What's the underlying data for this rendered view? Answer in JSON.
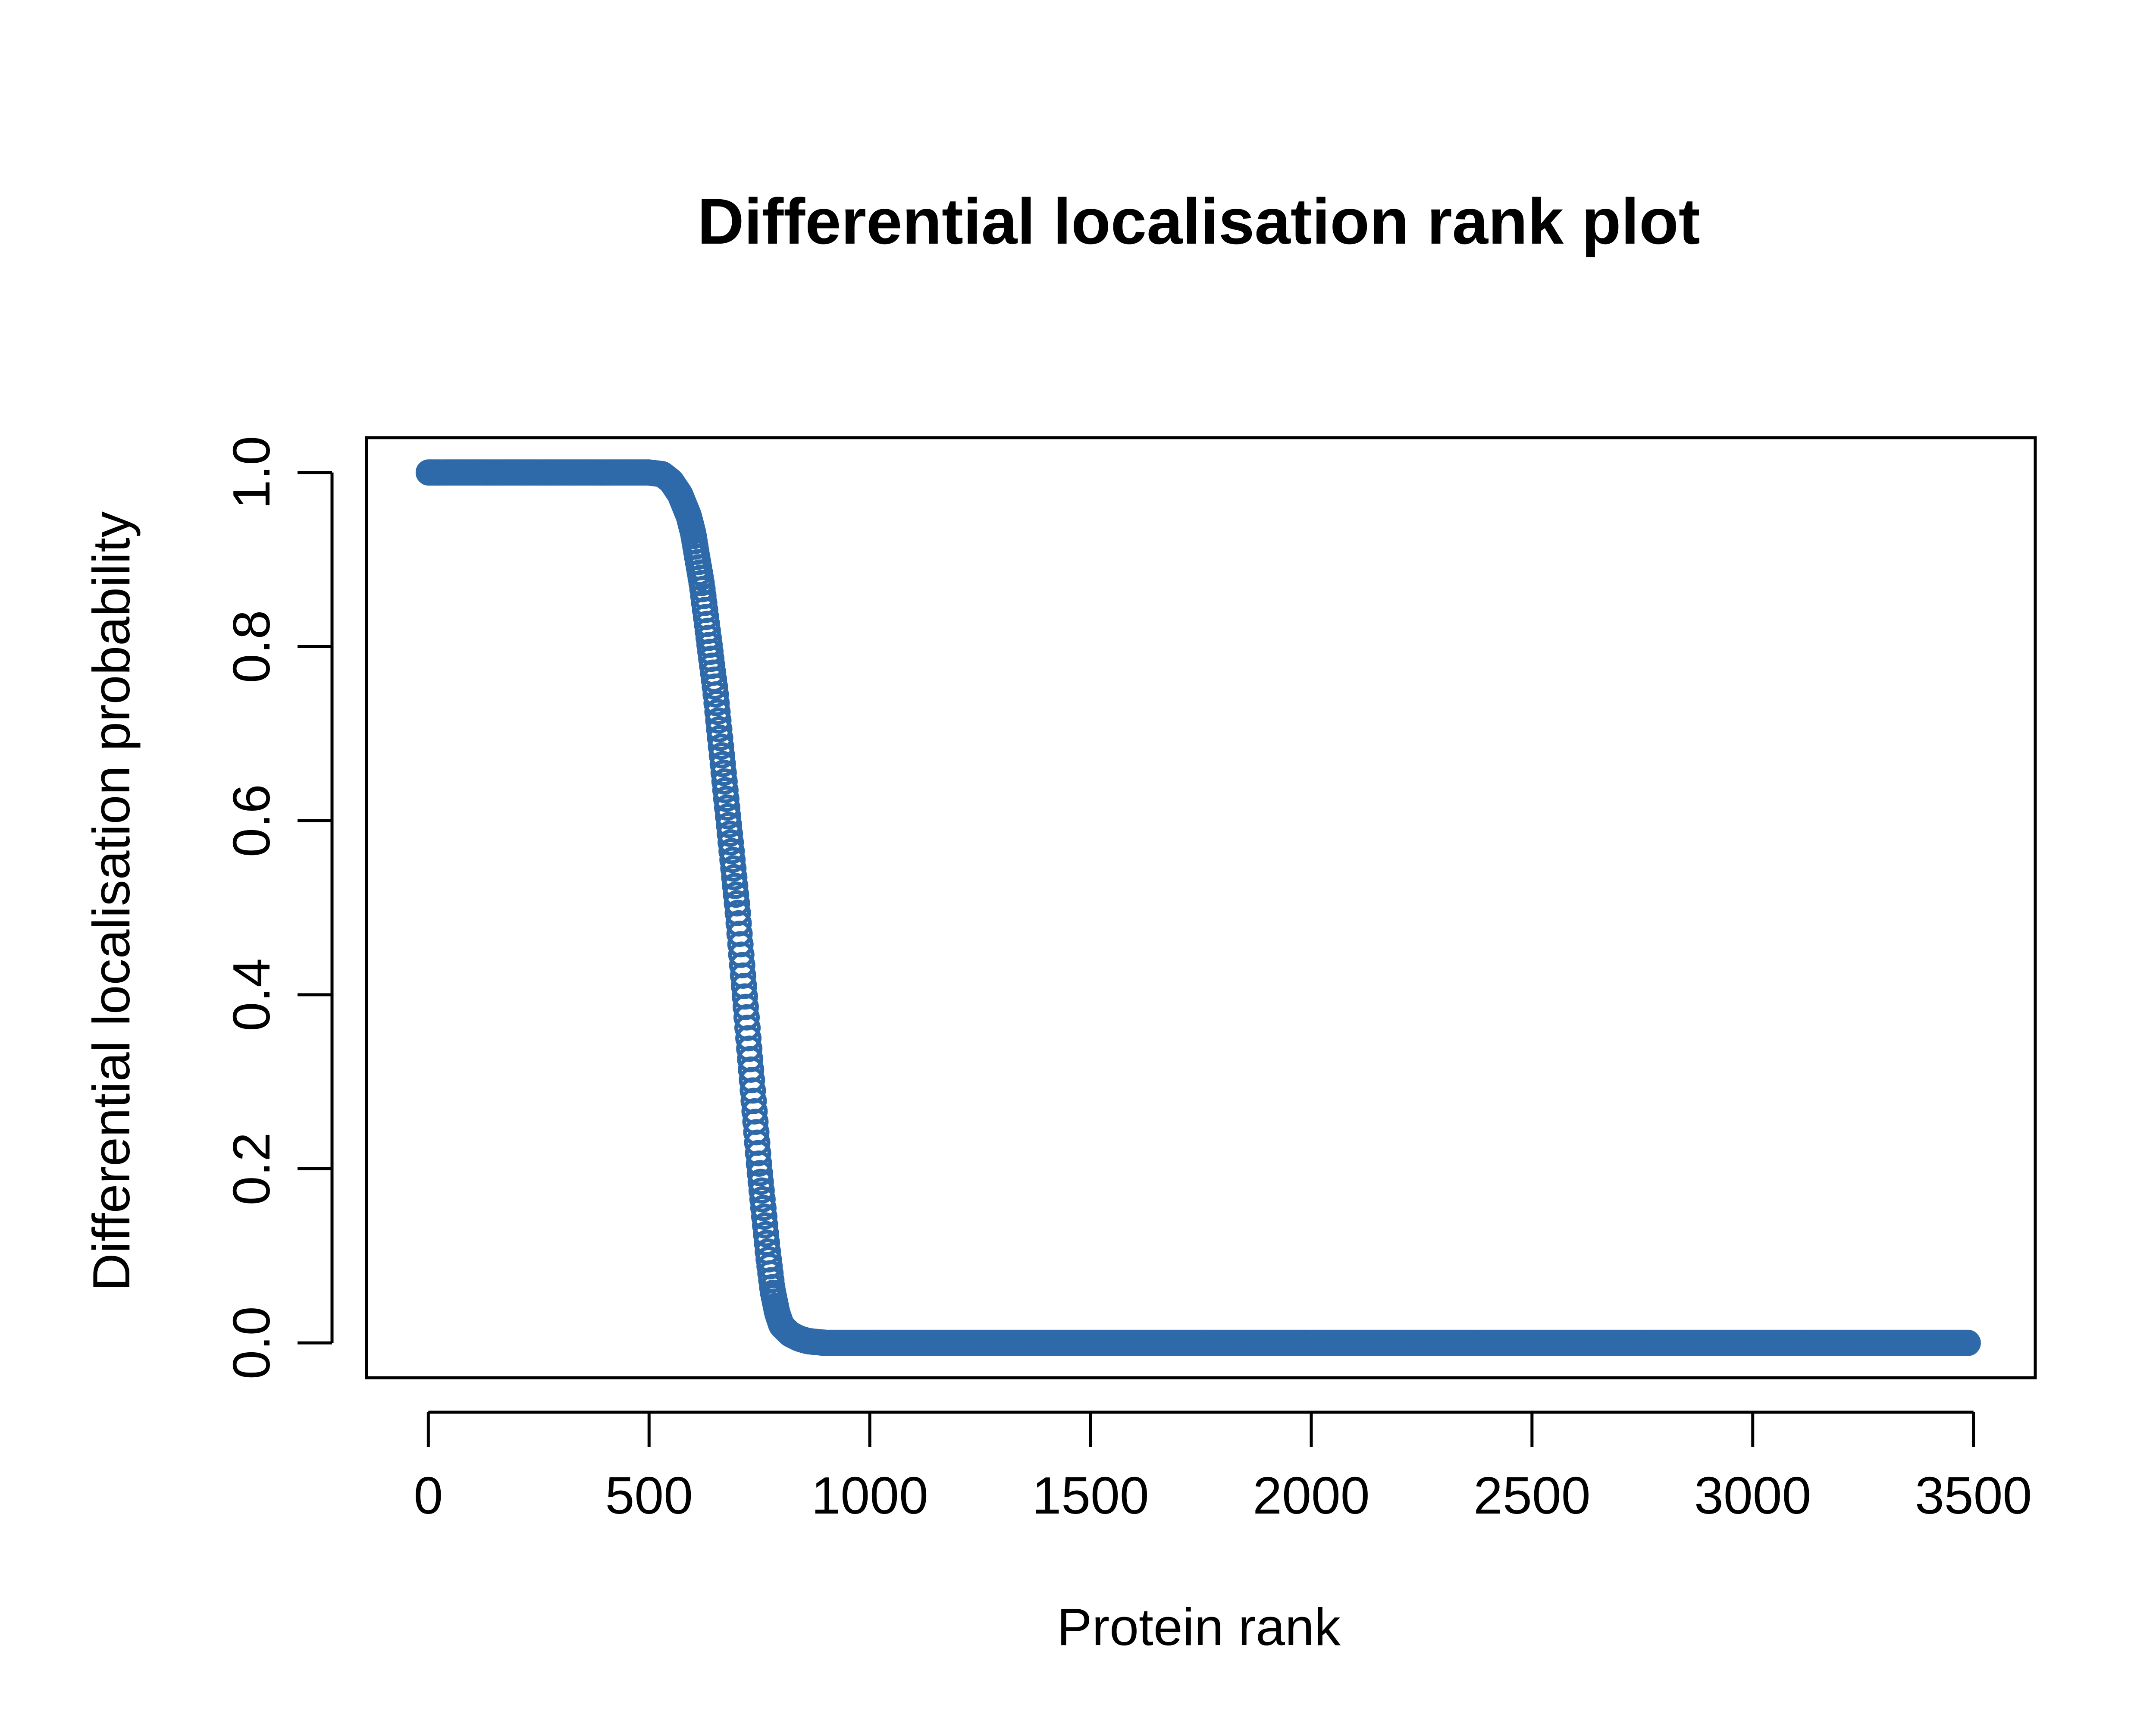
{
  "chart_data": {
    "type": "scatter",
    "title": "Differential localisation rank plot",
    "xlabel": "Protein rank",
    "ylabel": "Differential localisation probability",
    "xlim": [
      -140,
      3640
    ],
    "ylim": [
      -0.04,
      1.04
    ],
    "x_ticks": [
      "0",
      "500",
      "1000",
      "1500",
      "2000",
      "2500",
      "3000",
      "3500"
    ],
    "x_tick_values": [
      0,
      500,
      1000,
      1500,
      2000,
      2500,
      3000,
      3500
    ],
    "y_ticks": [
      "0.0",
      "0.2",
      "0.4",
      "0.6",
      "0.8",
      "1.0"
    ],
    "y_tick_values": [
      0,
      0.2,
      0.4,
      0.6,
      0.8,
      1.0
    ],
    "grid": false,
    "legend": "none",
    "marker": "open-circle",
    "color": "#2e6aa9",
    "series": [
      {
        "points_described_by": "ranked probabilities",
        "x": [
          1,
          100,
          200,
          300,
          400,
          500,
          530,
          550,
          570,
          590,
          600,
          610,
          620,
          630,
          640,
          650,
          660,
          670,
          680,
          690,
          700,
          710,
          720,
          730,
          740,
          750,
          760,
          770,
          780,
          790,
          800,
          820,
          840,
          860,
          880,
          900,
          1000,
          1500,
          2000,
          2500,
          3000,
          3490
        ],
        "y": [
          1.0,
          1.0,
          1.0,
          1.0,
          1.0,
          1.0,
          0.998,
          0.99,
          0.975,
          0.95,
          0.93,
          0.9,
          0.87,
          0.83,
          0.79,
          0.75,
          0.7,
          0.65,
          0.6,
          0.55,
          0.5,
          0.44,
          0.38,
          0.32,
          0.26,
          0.2,
          0.15,
          0.1,
          0.06,
          0.035,
          0.02,
          0.01,
          0.005,
          0.002,
          0.001,
          0.0,
          0.0,
          0.0,
          0.0,
          0.0,
          0.0,
          0.0
        ]
      }
    ]
  }
}
